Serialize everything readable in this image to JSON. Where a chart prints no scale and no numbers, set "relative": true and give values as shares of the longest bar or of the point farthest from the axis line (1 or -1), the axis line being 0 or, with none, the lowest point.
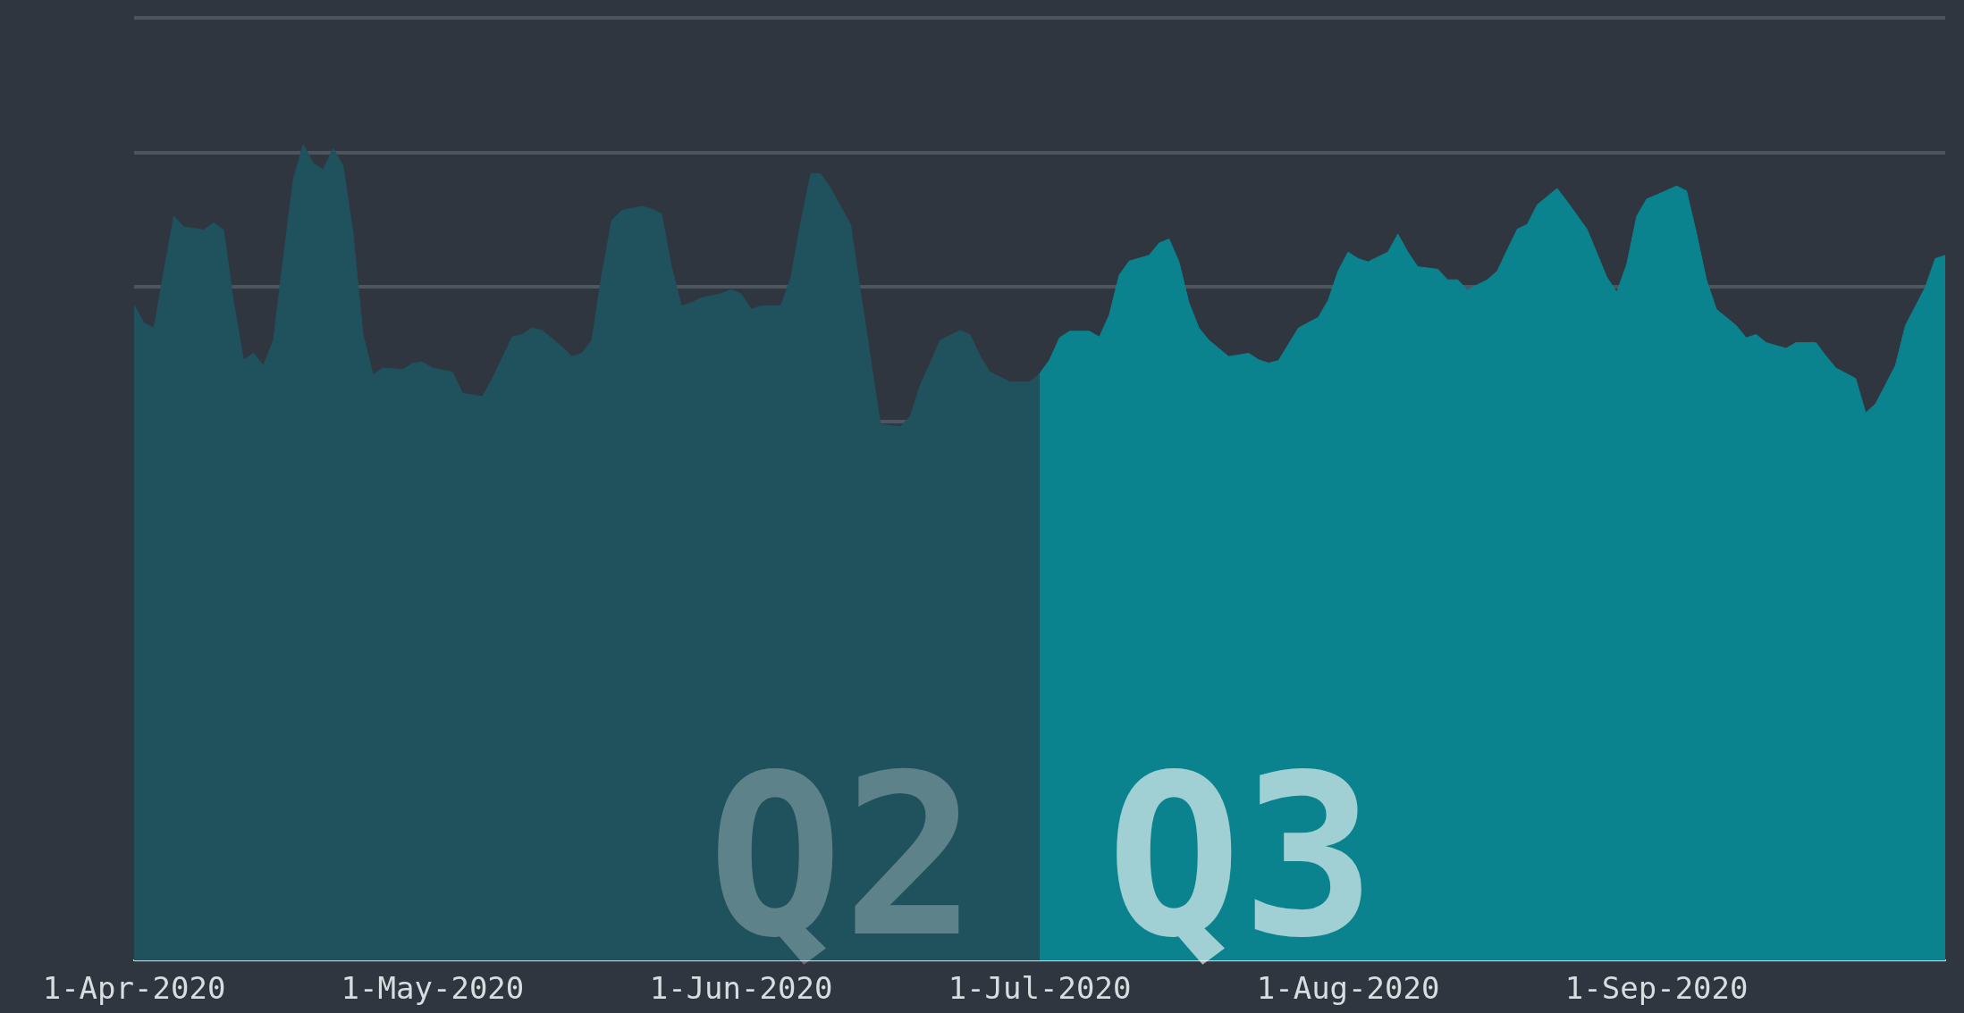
{
  "chart_data": {
    "type": "area",
    "relative": true,
    "grid": "y",
    "legend": false,
    "marker": "none",
    "xlim": [
      "2020-04-01",
      "2020-09-30"
    ],
    "xticks": [
      {
        "value": "2020-04-01",
        "label": "1-Apr-2020"
      },
      {
        "value": "2020-05-01",
        "label": "1-May-2020"
      },
      {
        "value": "2020-06-01",
        "label": "1-Jun-2020"
      },
      {
        "value": "2020-07-01",
        "label": "1-Jul-2020"
      },
      {
        "value": "2020-08-01",
        "label": "1-Aug-2020"
      },
      {
        "value": "2020-09-01",
        "label": "1-Sep-2020"
      }
    ],
    "series": [
      {
        "name": "Q2",
        "color": "#1f525c",
        "x": [
          "2020-04-01",
          "2020-04-02",
          "2020-04-03",
          "2020-04-04",
          "2020-04-05",
          "2020-04-06",
          "2020-04-08",
          "2020-04-09",
          "2020-04-10",
          "2020-04-11",
          "2020-04-12",
          "2020-04-13",
          "2020-04-14",
          "2020-04-15",
          "2020-04-16",
          "2020-04-17",
          "2020-04-18",
          "2020-04-19",
          "2020-04-20",
          "2020-04-21",
          "2020-04-22",
          "2020-04-23",
          "2020-04-24",
          "2020-04-25",
          "2020-04-26",
          "2020-04-28",
          "2020-04-29",
          "2020-04-30",
          "2020-05-01",
          "2020-05-03",
          "2020-05-04",
          "2020-05-06",
          "2020-05-07",
          "2020-05-09",
          "2020-05-10",
          "2020-05-11",
          "2020-05-12",
          "2020-05-14",
          "2020-05-15",
          "2020-05-16",
          "2020-05-17",
          "2020-05-18",
          "2020-05-19",
          "2020-05-20",
          "2020-05-22",
          "2020-05-23",
          "2020-05-24",
          "2020-05-25",
          "2020-05-26",
          "2020-05-27",
          "2020-05-28",
          "2020-05-30",
          "2020-05-31",
          "2020-06-01",
          "2020-06-02",
          "2020-06-03",
          "2020-06-05",
          "2020-06-06",
          "2020-06-07",
          "2020-06-08",
          "2020-06-09",
          "2020-06-10",
          "2020-06-12",
          "2020-06-13",
          "2020-06-15",
          "2020-06-17",
          "2020-06-18",
          "2020-06-19",
          "2020-06-20",
          "2020-06-21",
          "2020-06-23",
          "2020-06-24",
          "2020-06-25",
          "2020-06-26",
          "2020-06-28",
          "2020-06-30",
          "2020-07-01"
        ],
        "values": [
          0.803,
          0.781,
          0.775,
          0.845,
          0.912,
          0.899,
          0.895,
          0.904,
          0.895,
          0.806,
          0.736,
          0.744,
          0.729,
          0.76,
          0.86,
          0.957,
          1,
          0.977,
          0.969,
          0.995,
          0.974,
          0.891,
          0.767,
          0.718,
          0.726,
          0.724,
          0.732,
          0.733,
          0.726,
          0.721,
          0.695,
          0.691,
          0.713,
          0.764,
          0.767,
          0.775,
          0.772,
          0.752,
          0.74,
          0.744,
          0.76,
          0.84,
          0.907,
          0.919,
          0.924,
          0.921,
          0.915,
          0.85,
          0.802,
          0.806,
          0.812,
          0.817,
          0.822,
          0.817,
          0.798,
          0.802,
          0.802,
          0.837,
          0.905,
          0.964,
          0.964,
          0.946,
          0.902,
          0.819,
          0.657,
          0.654,
          0.667,
          0.705,
          0.732,
          0.76,
          0.772,
          0.767,
          0.741,
          0.721,
          0.709,
          0.709,
          0.719
        ]
      },
      {
        "name": "Q3",
        "color": "#0a838e",
        "x": [
          "2020-07-01",
          "2020-07-02",
          "2020-07-03",
          "2020-07-04",
          "2020-07-06",
          "2020-07-07",
          "2020-07-08",
          "2020-07-09",
          "2020-07-10",
          "2020-07-12",
          "2020-07-13",
          "2020-07-14",
          "2020-07-15",
          "2020-07-16",
          "2020-07-17",
          "2020-07-18",
          "2020-07-20",
          "2020-07-22",
          "2020-07-23",
          "2020-07-24",
          "2020-07-25",
          "2020-07-27",
          "2020-07-29",
          "2020-07-30",
          "2020-07-31",
          "2020-08-01",
          "2020-08-02",
          "2020-08-03",
          "2020-08-05",
          "2020-08-06",
          "2020-08-07",
          "2020-08-08",
          "2020-08-10",
          "2020-08-11",
          "2020-08-12",
          "2020-08-13",
          "2020-08-15",
          "2020-08-16",
          "2020-08-17",
          "2020-08-18",
          "2020-08-19",
          "2020-08-20",
          "2020-08-22",
          "2020-08-23",
          "2020-08-25",
          "2020-08-27",
          "2020-08-28",
          "2020-08-29",
          "2020-08-30",
          "2020-08-31",
          "2020-09-01",
          "2020-09-03",
          "2020-09-04",
          "2020-09-05",
          "2020-09-06",
          "2020-09-07",
          "2020-09-09",
          "2020-09-10",
          "2020-09-11",
          "2020-09-12",
          "2020-09-14",
          "2020-09-15",
          "2020-09-17",
          "2020-09-18",
          "2020-09-19",
          "2020-09-21",
          "2020-09-22",
          "2020-09-23",
          "2020-09-25",
          "2020-09-26",
          "2020-09-28",
          "2020-09-29",
          "2020-09-30"
        ],
        "values": [
          0.719,
          0.736,
          0.763,
          0.771,
          0.771,
          0.764,
          0.791,
          0.84,
          0.857,
          0.864,
          0.879,
          0.884,
          0.856,
          0.806,
          0.775,
          0.76,
          0.74,
          0.744,
          0.736,
          0.732,
          0.735,
          0.775,
          0.788,
          0.809,
          0.845,
          0.868,
          0.86,
          0.856,
          0.868,
          0.89,
          0.868,
          0.85,
          0.847,
          0.834,
          0.834,
          0.822,
          0.834,
          0.845,
          0.871,
          0.896,
          0.902,
          0.926,
          0.946,
          0.93,
          0.896,
          0.837,
          0.819,
          0.853,
          0.912,
          0.933,
          0.938,
          0.949,
          0.943,
          0.891,
          0.834,
          0.798,
          0.778,
          0.763,
          0.767,
          0.757,
          0.75,
          0.757,
          0.757,
          0.741,
          0.726,
          0.713,
          0.671,
          0.682,
          0.729,
          0.778,
          0.825,
          0.86,
          0.864
        ]
      }
    ]
  }
}
